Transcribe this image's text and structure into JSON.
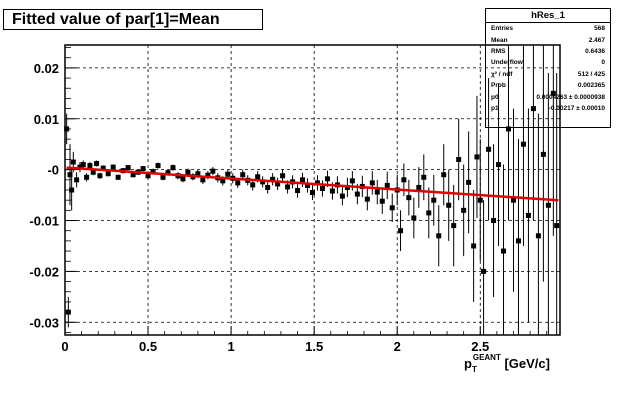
{
  "title": "Fitted value of par[1]=Mean",
  "stats": {
    "name": "hRes_1",
    "rows": [
      {
        "label": "Entries",
        "value": "568"
      },
      {
        "label": "Mean",
        "value": "2.467"
      },
      {
        "label": "RMS",
        "value": "0.6436"
      },
      {
        "label": "Underflow",
        "value": "0"
      },
      {
        "label": "χ² / ndf",
        "value": "512 / 425"
      },
      {
        "label": "Prob",
        "value": "0.002365"
      },
      {
        "label": "p0",
        "value": "0.0004263 ± 0.0000938"
      },
      {
        "label": "p1",
        "value": "-0.00217 ± 0.00010"
      }
    ]
  },
  "chart_data": {
    "type": "scatter",
    "title": "Fitted value of par[1]=Mean",
    "xlabel_main": "p",
    "xlabel_sub": "T",
    "xlabel_sup": "GEANT",
    "xlabel_unit": " [GeV/c]",
    "ylabel": "",
    "xlim": [
      0,
      2.98
    ],
    "ylim": [
      -0.0325,
      0.0245
    ],
    "grid": true,
    "x_ticks": [
      {
        "value": 0,
        "label": "0"
      },
      {
        "value": 0.5,
        "label": "0.5"
      },
      {
        "value": 1,
        "label": "1"
      },
      {
        "value": 1.5,
        "label": "1.5"
      },
      {
        "value": 2,
        "label": "2"
      },
      {
        "value": 2.5,
        "label": "2.5"
      }
    ],
    "y_ticks": [
      {
        "value": 0.02,
        "label": "0.02"
      },
      {
        "value": 0.01,
        "label": "0.01"
      },
      {
        "value": 0,
        "label": "-0"
      },
      {
        "value": -0.01,
        "label": "-0.01"
      },
      {
        "value": -0.02,
        "label": "-0.02"
      },
      {
        "value": -0.03,
        "label": "-0.03"
      }
    ],
    "fit": {
      "name": "linear fit",
      "p0": 0.0004263,
      "p1": -0.00217,
      "x_range": [
        0.01,
        2.97
      ],
      "color": "#e00000"
    },
    "marker_color": "#000000",
    "series": [
      {
        "name": "hRes_1",
        "points": [
          {
            "x": 0.01,
            "y": 0.008,
            "e": 0.003
          },
          {
            "x": 0.02,
            "y": -0.028,
            "e": 0.003
          },
          {
            "x": 0.03,
            "y": -0.001,
            "e": 0.006
          },
          {
            "x": 0.04,
            "y": -0.004,
            "e": 0.004
          },
          {
            "x": 0.05,
            "y": 0.0015,
            "e": 0.002
          },
          {
            "x": 0.07,
            "y": -0.002,
            "e": 0.0015
          },
          {
            "x": 0.09,
            "y": 0.0005,
            "e": 0.001
          },
          {
            "x": 0.11,
            "y": 0.001,
            "e": 0.0008
          },
          {
            "x": 0.13,
            "y": -0.0015,
            "e": 0.0008
          },
          {
            "x": 0.15,
            "y": 0.0008,
            "e": 0.0007
          },
          {
            "x": 0.17,
            "y": -0.0005,
            "e": 0.0006
          },
          {
            "x": 0.19,
            "y": 0.0012,
            "e": 0.0006
          },
          {
            "x": 0.21,
            "y": -0.0012,
            "e": 0.0006
          },
          {
            "x": 0.23,
            "y": 0.0003,
            "e": 0.0005
          },
          {
            "x": 0.26,
            "y": -0.0008,
            "e": 0.0005
          },
          {
            "x": 0.29,
            "y": 0.0005,
            "e": 0.0005
          },
          {
            "x": 0.32,
            "y": -0.0015,
            "e": 0.0005
          },
          {
            "x": 0.35,
            "y": -0.0002,
            "e": 0.0005
          },
          {
            "x": 0.38,
            "y": 0.0004,
            "e": 0.0005
          },
          {
            "x": 0.41,
            "y": -0.001,
            "e": 0.0005
          },
          {
            "x": 0.44,
            "y": -0.0005,
            "e": 0.0005
          },
          {
            "x": 0.47,
            "y": 0.0002,
            "e": 0.0005
          },
          {
            "x": 0.5,
            "y": -0.0012,
            "e": 0.0006
          },
          {
            "x": 0.53,
            "y": -0.0004,
            "e": 0.0006
          },
          {
            "x": 0.56,
            "y": 0.0008,
            "e": 0.0006
          },
          {
            "x": 0.59,
            "y": -0.0015,
            "e": 0.0006
          },
          {
            "x": 0.62,
            "y": -0.0006,
            "e": 0.0006
          },
          {
            "x": 0.65,
            "y": 0.0004,
            "e": 0.0006
          },
          {
            "x": 0.68,
            "y": -0.0012,
            "e": 0.0007
          },
          {
            "x": 0.71,
            "y": -0.0018,
            "e": 0.0007
          },
          {
            "x": 0.74,
            "y": -0.0005,
            "e": 0.0007
          },
          {
            "x": 0.77,
            "y": -0.0014,
            "e": 0.0007
          },
          {
            "x": 0.8,
            "y": -0.0008,
            "e": 0.0008
          },
          {
            "x": 0.83,
            "y": -0.002,
            "e": 0.0008
          },
          {
            "x": 0.86,
            "y": -0.0011,
            "e": 0.0008
          },
          {
            "x": 0.89,
            "y": -0.0003,
            "e": 0.0008
          },
          {
            "x": 0.92,
            "y": -0.0016,
            "e": 0.0009
          },
          {
            "x": 0.95,
            "y": -0.0022,
            "e": 0.0009
          },
          {
            "x": 0.98,
            "y": -0.0009,
            "e": 0.0009
          },
          {
            "x": 1.01,
            "y": -0.0017,
            "e": 0.001
          },
          {
            "x": 1.04,
            "y": -0.0026,
            "e": 0.001
          },
          {
            "x": 1.07,
            "y": -0.001,
            "e": 0.001
          },
          {
            "x": 1.1,
            "y": -0.0021,
            "e": 0.001
          },
          {
            "x": 1.13,
            "y": -0.003,
            "e": 0.0011
          },
          {
            "x": 1.16,
            "y": -0.0014,
            "e": 0.0011
          },
          {
            "x": 1.19,
            "y": -0.0024,
            "e": 0.0011
          },
          {
            "x": 1.22,
            "y": -0.0035,
            "e": 0.0012
          },
          {
            "x": 1.25,
            "y": -0.0019,
            "e": 0.0012
          },
          {
            "x": 1.28,
            "y": -0.0028,
            "e": 0.0012
          },
          {
            "x": 1.31,
            "y": -0.0012,
            "e": 0.0013
          },
          {
            "x": 1.34,
            "y": -0.0034,
            "e": 0.0013
          },
          {
            "x": 1.37,
            "y": -0.0024,
            "e": 0.0013
          },
          {
            "x": 1.4,
            "y": -0.0041,
            "e": 0.0014
          },
          {
            "x": 1.43,
            "y": -0.002,
            "e": 0.0014
          },
          {
            "x": 1.46,
            "y": -0.0031,
            "e": 0.0014
          },
          {
            "x": 1.49,
            "y": -0.0045,
            "e": 0.0015
          },
          {
            "x": 1.52,
            "y": -0.0026,
            "e": 0.0015
          },
          {
            "x": 1.55,
            "y": -0.0037,
            "e": 0.0016
          },
          {
            "x": 1.58,
            "y": -0.0018,
            "e": 0.0016
          },
          {
            "x": 1.61,
            "y": -0.0042,
            "e": 0.0017
          },
          {
            "x": 1.64,
            "y": -0.003,
            "e": 0.0017
          },
          {
            "x": 1.67,
            "y": -0.0052,
            "e": 0.0018
          },
          {
            "x": 1.7,
            "y": -0.0035,
            "e": 0.0019
          },
          {
            "x": 1.73,
            "y": -0.0022,
            "e": 0.0019
          },
          {
            "x": 1.76,
            "y": -0.0048,
            "e": 0.002
          },
          {
            "x": 1.79,
            "y": -0.0033,
            "e": 0.0021
          },
          {
            "x": 1.82,
            "y": -0.0058,
            "e": 0.0022
          },
          {
            "x": 1.85,
            "y": -0.0026,
            "e": 0.0023
          },
          {
            "x": 1.88,
            "y": -0.0044,
            "e": 0.0024
          },
          {
            "x": 1.91,
            "y": -0.0062,
            "e": 0.0025
          },
          {
            "x": 1.94,
            "y": -0.0031,
            "e": 0.0027
          },
          {
            "x": 1.97,
            "y": -0.0075,
            "e": 0.0028
          },
          {
            "x": 2.0,
            "y": -0.004,
            "e": 0.003
          },
          {
            "x": 2.02,
            "y": -0.012,
            "e": 0.004
          },
          {
            "x": 2.04,
            "y": -0.002,
            "e": 0.0032
          },
          {
            "x": 2.07,
            "y": -0.0055,
            "e": 0.0035
          },
          {
            "x": 2.1,
            "y": -0.0095,
            "e": 0.004
          },
          {
            "x": 2.13,
            "y": -0.0035,
            "e": 0.004
          },
          {
            "x": 2.16,
            "y": -0.0015,
            "e": 0.0045
          },
          {
            "x": 2.19,
            "y": -0.0085,
            "e": 0.005
          },
          {
            "x": 2.22,
            "y": -0.006,
            "e": 0.005
          },
          {
            "x": 2.25,
            "y": -0.013,
            "e": 0.006
          },
          {
            "x": 2.28,
            "y": -0.001,
            "e": 0.006
          },
          {
            "x": 2.31,
            "y": -0.007,
            "e": 0.007
          },
          {
            "x": 2.34,
            "y": -0.011,
            "e": 0.008
          },
          {
            "x": 2.37,
            "y": 0.002,
            "e": 0.008
          },
          {
            "x": 2.4,
            "y": -0.008,
            "e": 0.009
          },
          {
            "x": 2.43,
            "y": -0.0025,
            "e": 0.01
          },
          {
            "x": 2.46,
            "y": -0.015,
            "e": 0.011
          },
          {
            "x": 2.48,
            "y": 0.0025,
            "e": 0.012
          },
          {
            "x": 2.5,
            "y": -0.006,
            "e": 0.012
          },
          {
            "x": 2.52,
            "y": -0.02,
            "e": 0.014
          },
          {
            "x": 2.55,
            "y": 0.004,
            "e": 0.014
          },
          {
            "x": 2.58,
            "y": -0.01,
            "e": 0.015
          },
          {
            "x": 2.61,
            "y": 0.001,
            "e": 0.016
          },
          {
            "x": 2.64,
            "y": -0.016,
            "e": 0.017
          },
          {
            "x": 2.67,
            "y": 0.008,
            "e": 0.018
          },
          {
            "x": 2.7,
            "y": -0.006,
            "e": 0.018
          },
          {
            "x": 2.73,
            "y": -0.014,
            "e": 0.02
          },
          {
            "x": 2.76,
            "y": 0.005,
            "e": 0.02
          },
          {
            "x": 2.79,
            "y": -0.009,
            "e": 0.021
          },
          {
            "x": 2.82,
            "y": 0.012,
            "e": 0.022
          },
          {
            "x": 2.85,
            "y": -0.013,
            "e": 0.024
          },
          {
            "x": 2.88,
            "y": 0.003,
            "e": 0.025
          },
          {
            "x": 2.91,
            "y": -0.007,
            "e": 0.026
          },
          {
            "x": 2.94,
            "y": 0.015,
            "e": 0.028
          },
          {
            "x": 2.96,
            "y": -0.011,
            "e": 0.03
          }
        ]
      }
    ]
  }
}
